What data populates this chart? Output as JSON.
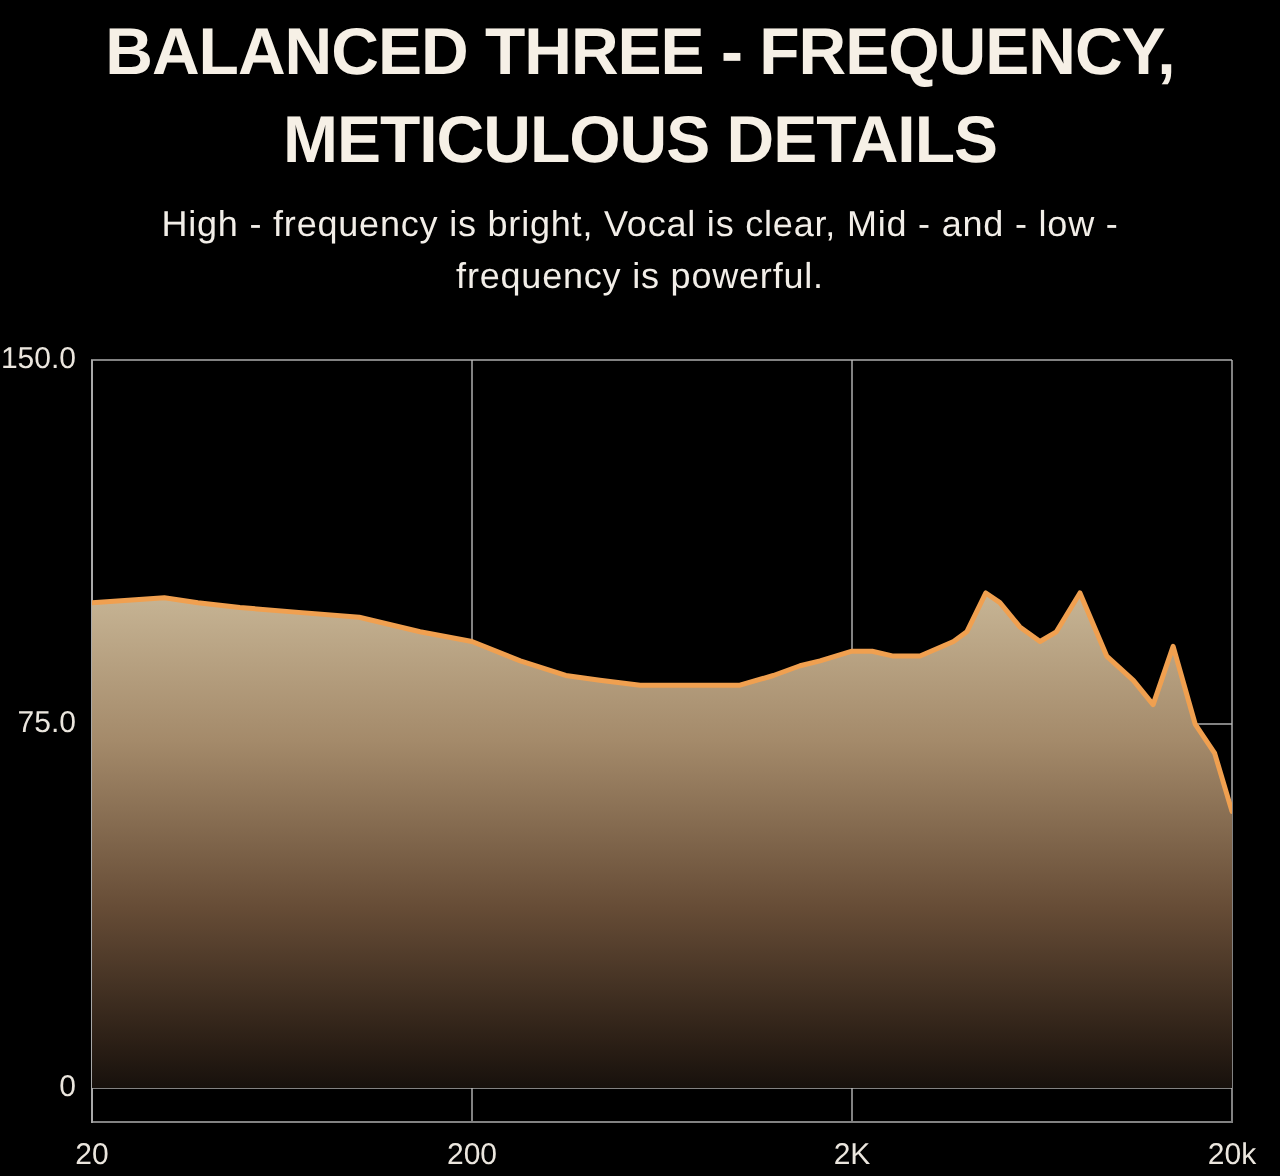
{
  "chart_data": {
    "type": "area",
    "title": "BALANCED THREE - FREQUENCY, METICULOUS DETAILS",
    "subtitle": "High - frequency is bright, Vocal is clear, Mid - and - low - frequency is powerful.",
    "x": [
      20,
      31,
      38,
      49,
      70,
      101,
      146,
      200,
      268,
      353,
      434,
      554,
      706,
      845,
      1014,
      1242,
      1460,
      1648,
      2000,
      2260,
      2570,
      3020,
      3700,
      4010,
      4500,
      4900,
      5530,
      6250,
      6900,
      7960,
      9360,
      11000,
      12400,
      14000,
      16000,
      18000,
      20000
    ],
    "series": [
      {
        "color": "#f0a050",
        "values": [
          100,
          101,
          100,
          99,
          98,
          97,
          94,
          92,
          88,
          85,
          84,
          83,
          83,
          83,
          83,
          85,
          87,
          88,
          90,
          90,
          89,
          89,
          92,
          94,
          102,
          100,
          95,
          92,
          94,
          102,
          89,
          84,
          79,
          91,
          75,
          69,
          57
        ]
      }
    ],
    "log": "x",
    "xlim": [
      20,
      20000
    ],
    "xticks": [
      20,
      200,
      {
        "value": 2000,
        "label": "2K"
      },
      {
        "value": 20000,
        "label": "20k"
      }
    ],
    "ylim": [
      -7,
      150
    ],
    "yticks": [
      0,
      {
        "value": 75,
        "label": "75.0"
      },
      {
        "value": 150,
        "label": "150.0"
      }
    ],
    "grid": true,
    "marker": "none"
  }
}
